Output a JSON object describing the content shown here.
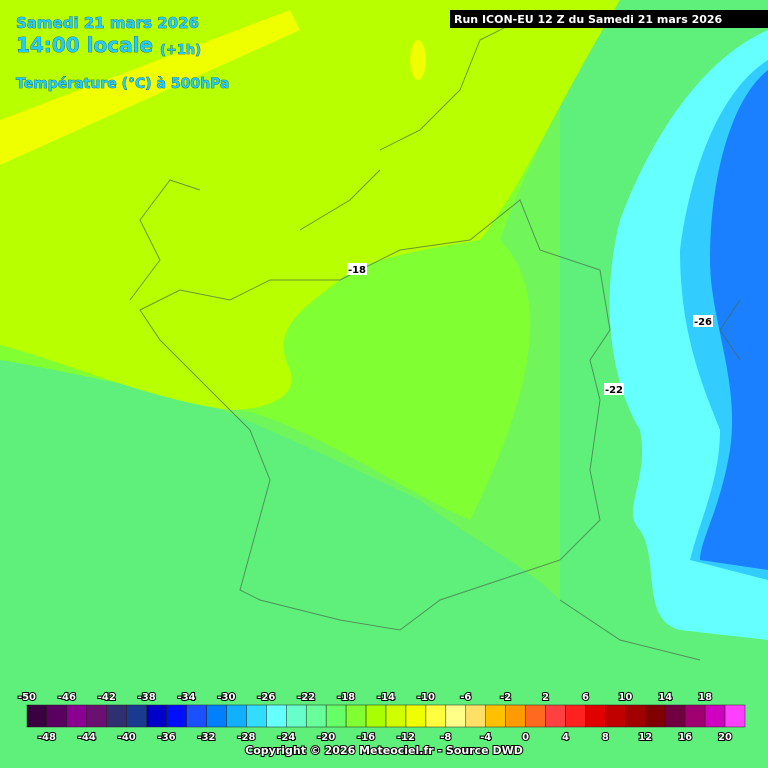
{
  "header": {
    "date": "Samedi 21 mars 2026",
    "time": "14:00 locale",
    "offset": "(+1h)",
    "variable": "Température (°C) à 500hPa"
  },
  "run": "Run ICON-EU 12 Z du Samedi 21 mars 2026",
  "contours": [
    {
      "label": "-18"
    },
    {
      "label": "-26"
    },
    {
      "label": "-22"
    }
  ],
  "legend": {
    "top_labels": [
      -50,
      -46,
      -42,
      -38,
      -34,
      -30,
      -26,
      -22,
      -18,
      -14,
      -10,
      -6,
      -2,
      2,
      6,
      10,
      14,
      18
    ],
    "bottom_labels": [
      -48,
      -44,
      -40,
      -36,
      -32,
      -28,
      -24,
      -20,
      -16,
      -12,
      -8,
      -4,
      0,
      4,
      8,
      12,
      16,
      20
    ],
    "colors": [
      "#3a0040",
      "#5a0060",
      "#8a0090",
      "#6a1070",
      "#303070",
      "#1a3a90",
      "#0000c8",
      "#0010ff",
      "#1a50ff",
      "#0080ff",
      "#10b0ff",
      "#30dcff",
      "#66ffff",
      "#66ffcc",
      "#66ff99",
      "#66ff66",
      "#80ff33",
      "#a8ff00",
      "#d0ff00",
      "#f0ff00",
      "#ffff40",
      "#ffff88",
      "#ffe066",
      "#ffc000",
      "#ff9a00",
      "#ff6a20",
      "#ff4040",
      "#ff2020",
      "#e00000",
      "#c00000",
      "#a00000",
      "#800000",
      "#700040",
      "#a00070",
      "#d000c0",
      "#ff40ff"
    ]
  },
  "credit": "Copyright © 2026 Meteociel.fr - Source DWD"
}
